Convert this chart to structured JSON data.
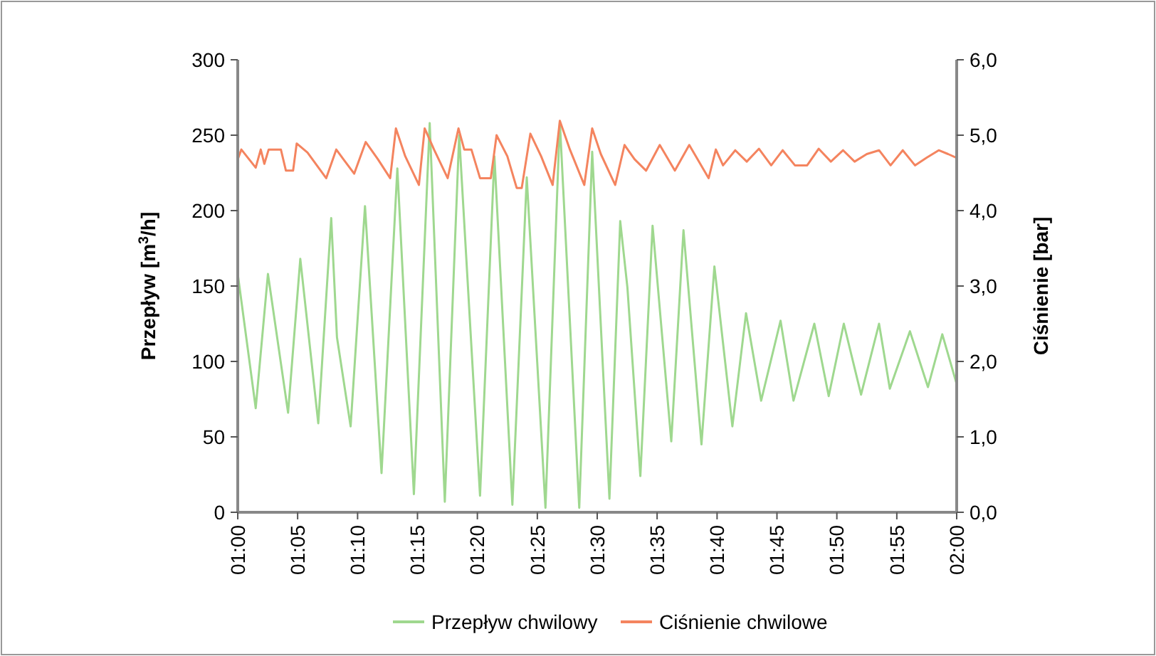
{
  "chart_data": {
    "type": "line",
    "ylabel": "Przepływ [m$^{3}$/h]",
    "y2label": "Ciśnienie [bar]",
    "xlim": [
      1,
      2
    ],
    "xticks": [
      {
        "value": 1,
        "label": "01:00"
      },
      {
        "value": 1.0833,
        "label": "01:05"
      },
      {
        "value": 1.1667,
        "label": "01:10"
      },
      {
        "value": 1.25,
        "label": "01:15"
      },
      {
        "value": 1.3333,
        "label": "01:20"
      },
      {
        "value": 1.4167,
        "label": "01:25"
      },
      {
        "value": 1.5,
        "label": "01:30"
      },
      {
        "value": 1.5833,
        "label": "01:35"
      },
      {
        "value": 1.6667,
        "label": "01:40"
      },
      {
        "value": 1.75,
        "label": "01:45"
      },
      {
        "value": 1.8333,
        "label": "01:50"
      },
      {
        "value": 1.9167,
        "label": "01:55"
      },
      {
        "value": 2,
        "label": "02:00"
      }
    ],
    "ylim": [
      0,
      300
    ],
    "yticks": [
      0,
      50,
      100,
      150,
      200,
      250,
      300
    ],
    "y2lim": [
      0,
      6
    ],
    "y2ticks": [
      {
        "value": 0,
        "label": "0,0"
      },
      {
        "value": 1,
        "label": "1,0"
      },
      {
        "value": 2,
        "label": "2,0"
      },
      {
        "value": 3,
        "label": "3,0"
      },
      {
        "value": 4,
        "label": "4,0"
      },
      {
        "value": 5,
        "label": "5,0"
      },
      {
        "value": 6,
        "label": "6,0"
      }
    ],
    "grid": false,
    "legend": "bottom",
    "marker": "none",
    "line_style": "solid",
    "series": [
      {
        "name": "Przepływ chwilowy",
        "color": "#9fd88f",
        "x": [
          1,
          1.025,
          1.042,
          1.07,
          1.087,
          1.112,
          1.13,
          1.138,
          1.157,
          1.177,
          1.2,
          1.222,
          1.245,
          1.267,
          1.288,
          1.308,
          1.337,
          1.357,
          1.382,
          1.402,
          1.428,
          1.448,
          1.475,
          1.493,
          1.517,
          1.532,
          1.542,
          1.56,
          1.577,
          1.603,
          1.62,
          1.645,
          1.663,
          1.688,
          1.707,
          1.728,
          1.755,
          1.773,
          1.802,
          1.822,
          1.843,
          1.867,
          1.892,
          1.907,
          1.935,
          1.96,
          1.98,
          2
        ],
        "values": [
          158,
          69,
          158,
          66,
          168,
          59,
          195,
          116,
          57,
          203,
          26,
          228,
          12,
          258,
          7,
          250,
          11,
          236,
          5,
          222,
          3,
          259,
          3,
          239,
          9,
          193,
          149,
          24,
          190,
          47,
          187,
          45,
          163,
          57,
          132,
          74,
          127,
          74,
          125,
          77,
          125,
          78,
          125,
          82,
          120,
          83,
          118,
          85
        ]
      },
      {
        "name": "Ciśnienie chwilowe",
        "color": "#f4845f",
        "axis": "y2",
        "x": [
          1,
          1.005,
          1.025,
          1.032,
          1.037,
          1.043,
          1.06,
          1.067,
          1.077,
          1.082,
          1.097,
          1.123,
          1.137,
          1.147,
          1.162,
          1.178,
          1.195,
          1.212,
          1.22,
          1.233,
          1.252,
          1.26,
          1.273,
          1.292,
          1.307,
          1.315,
          1.325,
          1.337,
          1.352,
          1.36,
          1.375,
          1.388,
          1.395,
          1.407,
          1.422,
          1.438,
          1.448,
          1.462,
          1.482,
          1.493,
          1.505,
          1.525,
          1.538,
          1.552,
          1.568,
          1.587,
          1.608,
          1.628,
          1.655,
          1.665,
          1.675,
          1.692,
          1.708,
          1.725,
          1.742,
          1.758,
          1.775,
          1.792,
          1.808,
          1.825,
          1.842,
          1.858,
          1.875,
          1.892,
          1.908,
          1.925,
          1.942,
          1.958,
          1.975,
          1.988,
          2
        ],
        "values": [
          4.68,
          4.81,
          4.57,
          4.81,
          4.62,
          4.81,
          4.81,
          4.53,
          4.53,
          4.89,
          4.77,
          4.43,
          4.81,
          4.68,
          4.49,
          4.91,
          4.68,
          4.43,
          5.09,
          4.72,
          4.34,
          5.09,
          4.81,
          4.43,
          5.09,
          4.81,
          4.81,
          4.43,
          4.43,
          5.0,
          4.72,
          4.3,
          4.3,
          5.02,
          4.72,
          4.34,
          5.19,
          4.81,
          4.34,
          5.09,
          4.75,
          4.34,
          4.87,
          4.68,
          4.53,
          4.87,
          4.53,
          4.87,
          4.43,
          4.81,
          4.6,
          4.8,
          4.65,
          4.82,
          4.6,
          4.8,
          4.6,
          4.6,
          4.82,
          4.65,
          4.8,
          4.65,
          4.75,
          4.8,
          4.6,
          4.8,
          4.6,
          4.7,
          4.8,
          4.75,
          4.7
        ]
      }
    ]
  }
}
